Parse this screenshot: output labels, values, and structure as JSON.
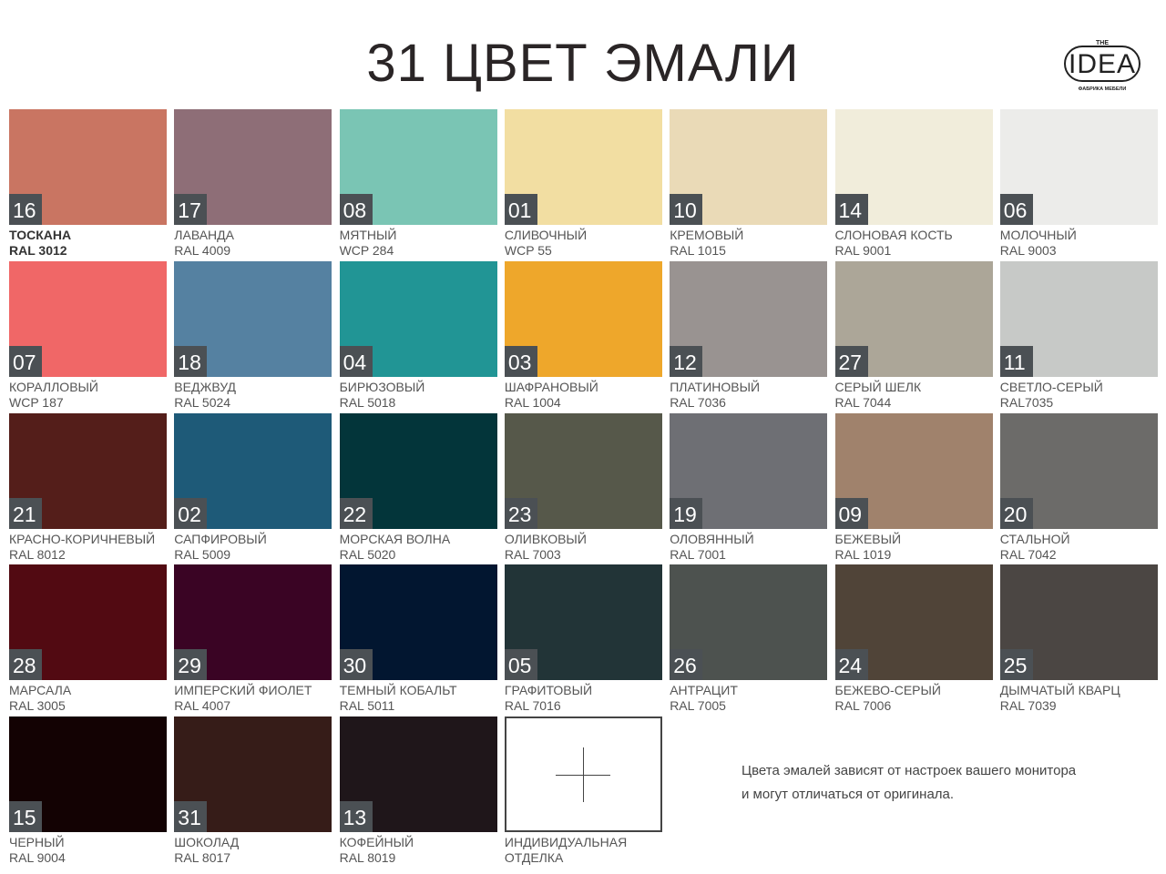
{
  "title": "31 ЦВЕТ ЭМАЛИ",
  "logo": {
    "top": "THE",
    "main": "IDEA",
    "sub": "ФАБРИКА МЕБЕЛИ"
  },
  "swatches": [
    {
      "num": "16",
      "name": "ТОСКАНА",
      "code": "RAL 3012",
      "color": "#c97562"
    },
    {
      "num": "17",
      "name": "ЛАВАНДА",
      "code": "RAL 4009",
      "color": "#8e6e77"
    },
    {
      "num": "08",
      "name": "МЯТНЫЙ",
      "code": "WCP 284",
      "color": "#7ac5b4"
    },
    {
      "num": "01",
      "name": "СЛИВОЧНЫЙ",
      "code": "WCP 55",
      "color": "#f2dea2"
    },
    {
      "num": "10",
      "name": "КРЕМОВЫЙ",
      "code": "RAL 1015",
      "color": "#eadab7"
    },
    {
      "num": "14",
      "name": "СЛОНОВАЯ КОСТЬ",
      "code": "RAL 9001",
      "color": "#f1eddb"
    },
    {
      "num": "06",
      "name": "МОЛОЧНЫЙ",
      "code": "RAL 9003",
      "color": "#ececea"
    },
    {
      "num": "07",
      "name": "КОРАЛЛОВЫЙ",
      "code": "WCP 187",
      "color": "#f06767"
    },
    {
      "num": "18",
      "name": "ВЕДЖВУД",
      "code": "RAL 5024",
      "color": "#5581a1"
    },
    {
      "num": "04",
      "name": "БИРЮЗОВЫЙ",
      "code": "RAL 5018",
      "color": "#219595"
    },
    {
      "num": "03",
      "name": "ШАФРАНОВЫЙ",
      "code": "RAL 1004",
      "color": "#eea72b"
    },
    {
      "num": "12",
      "name": "ПЛАТИНОВЫЙ",
      "code": "RAL 7036",
      "color": "#999391"
    },
    {
      "num": "27",
      "name": "СЕРЫЙ ШЕЛК",
      "code": "RAL 7044",
      "color": "#aca698"
    },
    {
      "num": "11",
      "name": "СВЕТЛО-СЕРЫЙ",
      "code": "RAL7035",
      "color": "#c7c9c7"
    },
    {
      "num": "21",
      "name": "КРАСНО-КОРИЧНЕВЫЙ",
      "code": "RAL 8012",
      "color": "#541e1a"
    },
    {
      "num": "02",
      "name": "САПФИРОВЫЙ",
      "code": "RAL 5009",
      "color": "#1e5a78"
    },
    {
      "num": "22",
      "name": "МОРСКАЯ ВОЛНА",
      "code": "RAL 5020",
      "color": "#03353a"
    },
    {
      "num": "23",
      "name": "ОЛИВКОВЫЙ",
      "code": "RAL 7003",
      "color": "#56584a"
    },
    {
      "num": "19",
      "name": "ОЛОВЯННЫЙ",
      "code": "RAL 7001",
      "color": "#6e6f74"
    },
    {
      "num": "09",
      "name": "БЕЖЕВЫЙ",
      "code": "RAL 1019",
      "color": "#a0826c"
    },
    {
      "num": "20",
      "name": "СТАЛЬНОЙ",
      "code": "RAL 7042",
      "color": "#6c6b69"
    },
    {
      "num": "28",
      "name": "МАРСАЛА",
      "code": "RAL 3005",
      "color": "#520a12"
    },
    {
      "num": "29",
      "name": "ИМПЕРСКИЙ ФИОЛЕТ",
      "code": "RAL 4007",
      "color": "#3a0424"
    },
    {
      "num": "30",
      "name": "ТЕМНЫЙ КОБАЛЬТ",
      "code": "RAL 5011",
      "color": "#021630"
    },
    {
      "num": "05",
      "name": "ГРАФИТОВЫЙ",
      "code": "RAL 7016",
      "color": "#223437"
    },
    {
      "num": "26",
      "name": "АНТРАЦИТ",
      "code": "RAL 7005",
      "color": "#4d524f"
    },
    {
      "num": "24",
      "name": "БЕЖЕВО-СЕРЫЙ",
      "code": "RAL 7006",
      "color": "#504438"
    },
    {
      "num": "25",
      "name": "ДЫМЧАТЫЙ КВАРЦ",
      "code": "RAL 7039",
      "color": "#4b4643"
    },
    {
      "num": "15",
      "name": "ЧЕРНЫЙ",
      "code": "RAL 9004",
      "color": "#130203"
    },
    {
      "num": "31",
      "name": "ШОКОЛАД",
      "code": "RAL 8017",
      "color": "#361c18"
    },
    {
      "num": "13",
      "name": "КОФЕЙНЫЙ",
      "code": "RAL 8019",
      "color": "#1f161a"
    }
  ],
  "custom": {
    "name": "ИНДИВИДУАЛЬНАЯ",
    "name2": "ОТДЕЛКА"
  },
  "note": {
    "line1": "Цвета эмалей зависят от настроек  вашего монитора",
    "line2": "и могут отличаться  от оригинала."
  }
}
